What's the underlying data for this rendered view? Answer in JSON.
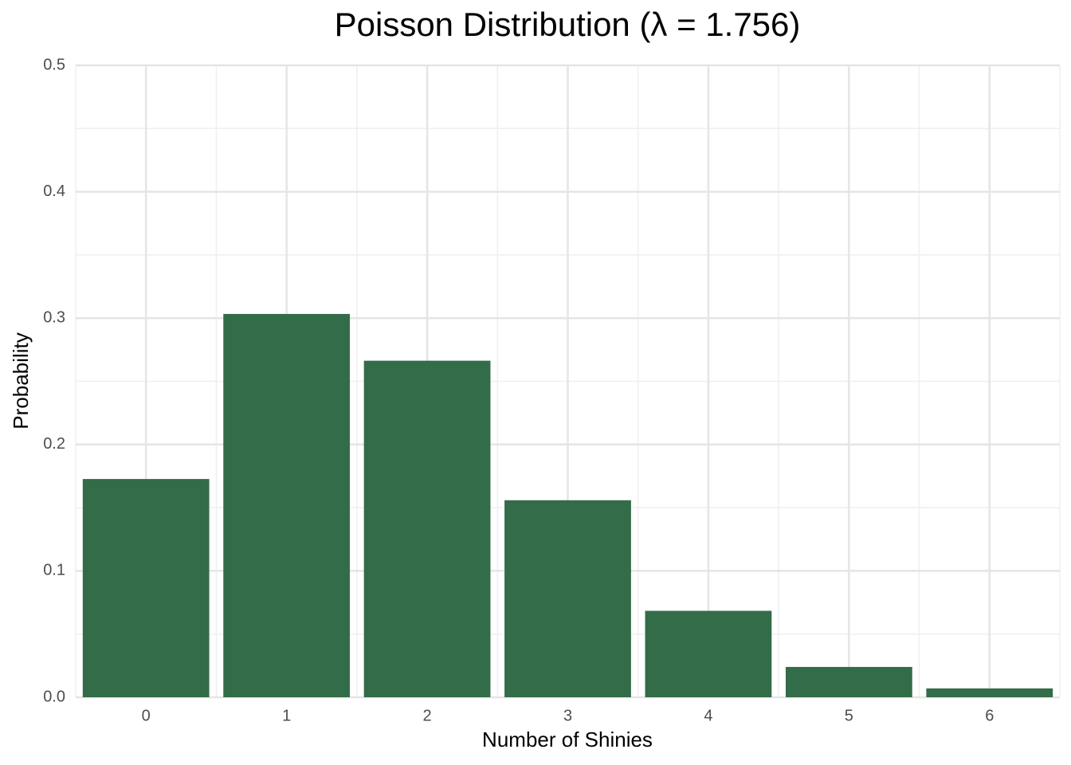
{
  "chart_data": {
    "type": "bar",
    "title": "Poisson Distribution (λ = 1.756)",
    "x_label": "Number of Shinies",
    "y_label": "Probability",
    "categories": [
      "0",
      "1",
      "2",
      "3",
      "4",
      "5",
      "6"
    ],
    "values": [
      0.1727,
      0.3033,
      0.2663,
      0.1559,
      0.0684,
      0.024,
      0.007
    ],
    "color": "#336c48",
    "ylim": [
      0,
      0.5
    ],
    "yticks": [
      {
        "value": 0,
        "label": "0.0"
      },
      0.1,
      0.2,
      0.3,
      0.4,
      0.5
    ],
    "minor_yticks": [
      0.05,
      0.15,
      0.25,
      0.35,
      0.45
    ],
    "grid": true
  }
}
